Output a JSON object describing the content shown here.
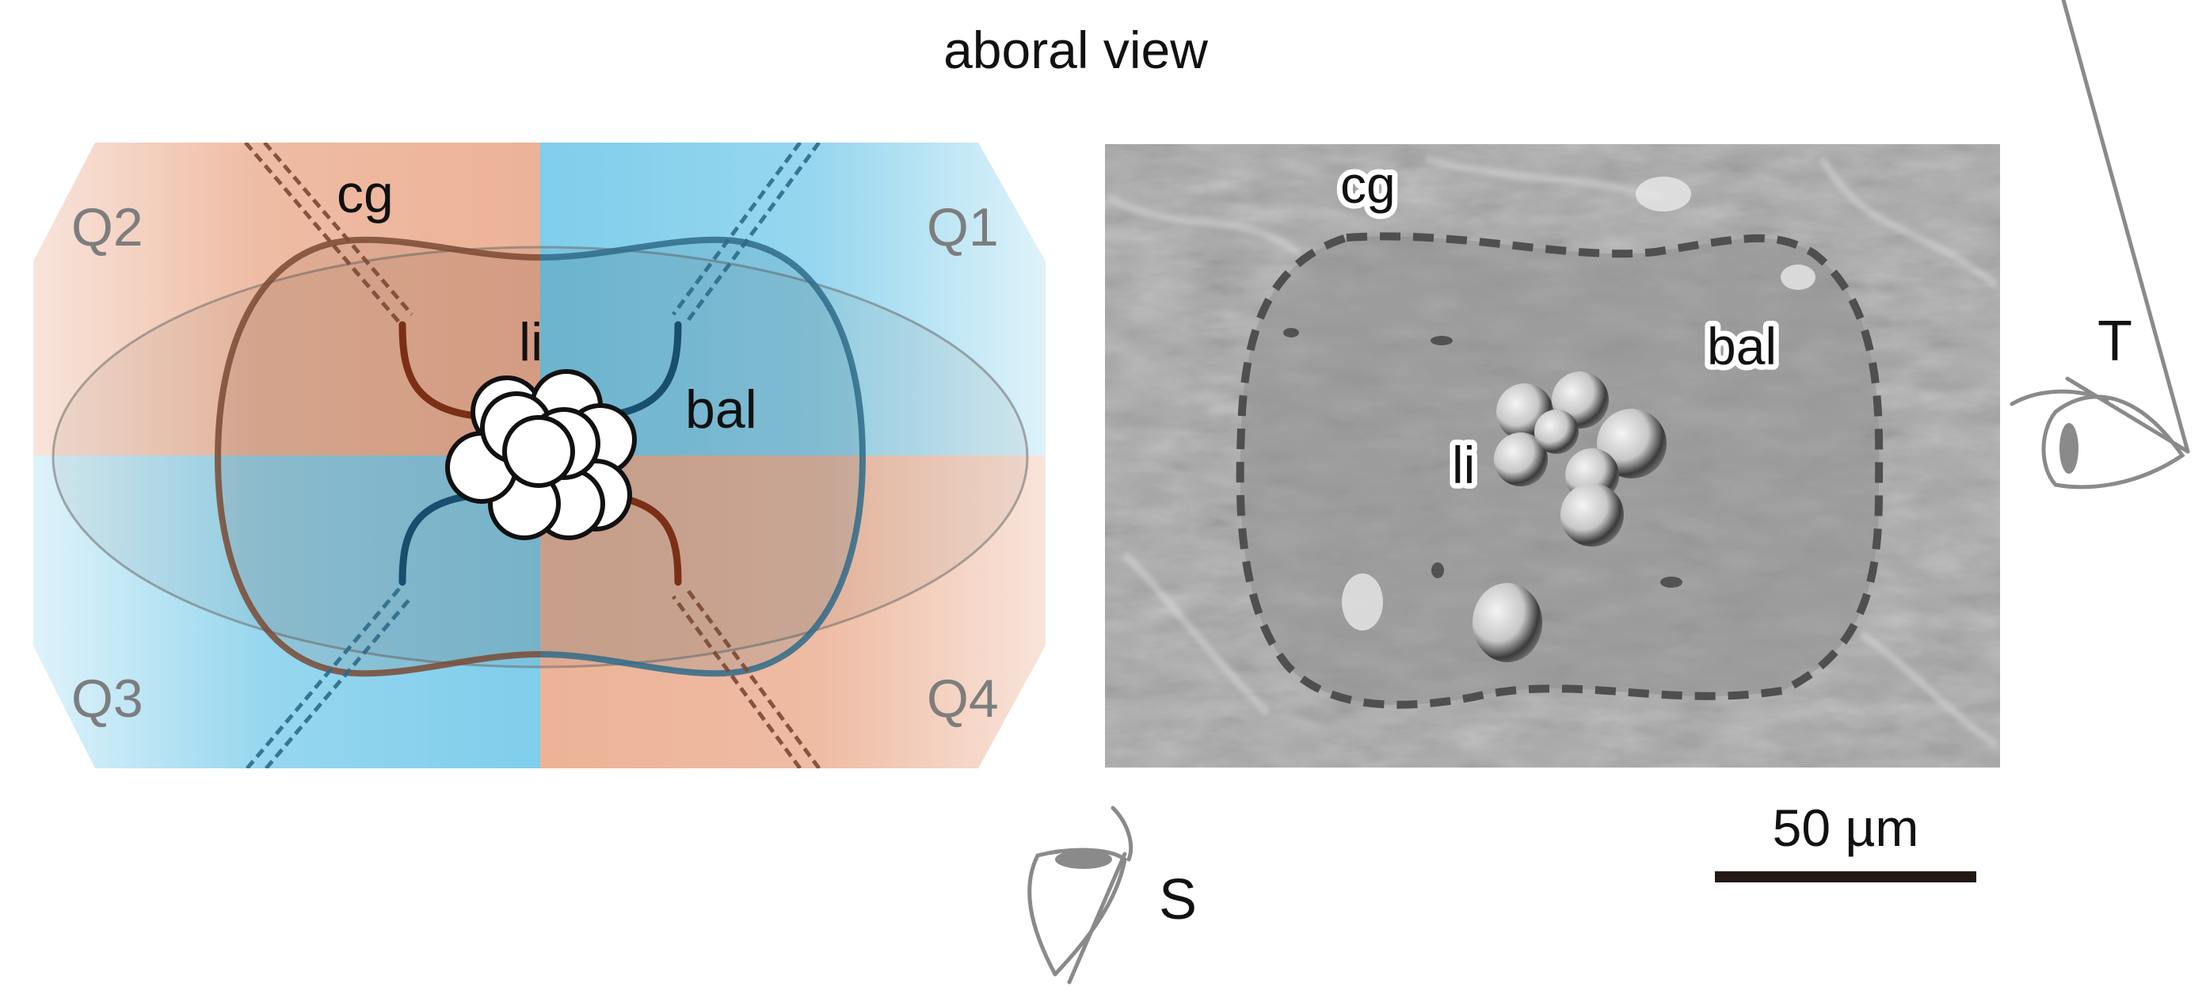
{
  "title": "aboral view",
  "schematic": {
    "quadrants": [
      "Q1",
      "Q2",
      "Q3",
      "Q4"
    ],
    "labels": {
      "cg": "cg",
      "li": "li",
      "bal": "bal"
    },
    "colors": {
      "orange": "#e9a585",
      "blue": "#5fc1e6",
      "orange_line": "#7a3a22",
      "blue_line": "#1e5a78"
    }
  },
  "micrograph": {
    "labels": {
      "cg": "cg",
      "li": "li",
      "bal": "bal"
    },
    "scale_bar": {
      "label": "50 µm"
    }
  },
  "views": {
    "tentacular": {
      "label": "T",
      "icon": "eye-icon"
    },
    "sagittal": {
      "label": "S",
      "icon": "eye-icon"
    }
  }
}
